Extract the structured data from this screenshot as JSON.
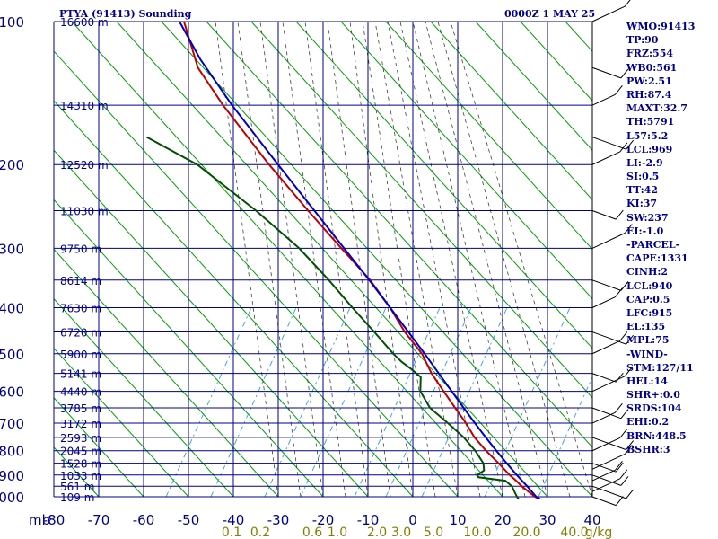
{
  "header": {
    "station_title": "PTYA (91413) Sounding",
    "time_label": "0000Z  1 MAY 25"
  },
  "indices": [
    "WMO:91413",
    "TP:90",
    "FRZ:554",
    "WB0:561",
    "PW:2.51",
    "RH:87.4",
    "MAXT:32.7",
    "TH:5791",
    "L57:5.2",
    "LCL:969",
    "LI:-2.9",
    "SI:0.5",
    "TT:42",
    "KI:37",
    "SW:237",
    "EI:-1.0",
    "-PARCEL-",
    "CAPE:1331",
    "CINH:2",
    "LCL:940",
    "CAP:0.5",
    "LFC:915",
    "EL:135",
    "MPL:75",
    "-WIND-",
    "STM:127/11",
    "HEL:14",
    "SHR+:0.0",
    "SRDS:104",
    "EHI:0.2",
    "BRN:448.5",
    "BSHR:3"
  ],
  "colors": {
    "grid": "#00008b",
    "dry_adiabat": "#00a000",
    "moist_adiabat": "#404040",
    "mixing_ratio": "#3399dd",
    "temperature": "#c00000",
    "dewpoint": "#005000",
    "parcel": "#0000c0",
    "wind_barb": "#000000",
    "mixing_label": "#808000"
  },
  "chart_data": {
    "type": "line",
    "title": "PTYA (91413) Sounding",
    "xlabel": "",
    "ylabel": "mb",
    "xlim": [
      -80,
      40
    ],
    "ylim": [
      1000,
      100
    ],
    "y_scale": "log",
    "grid": true,
    "pressure_ticks": [
      "100",
      "200",
      "300",
      "400",
      "500",
      "600",
      "700",
      "800",
      "900",
      "1000"
    ],
    "pressure_axis_label": "mb",
    "temperature_ticks": [
      "-80",
      "-70",
      "-60",
      "-50",
      "-40",
      "-30",
      "-20",
      "-10",
      "0",
      "10",
      "20",
      "30",
      "40"
    ],
    "height_labels": [
      {
        "p": 100,
        "label": "16600 m"
      },
      {
        "p": 150,
        "label": "14310 m"
      },
      {
        "p": 200,
        "label": "12520 m"
      },
      {
        "p": 250,
        "label": "11030 m"
      },
      {
        "p": 300,
        "label": "9750 m"
      },
      {
        "p": 350,
        "label": "8614 m"
      },
      {
        "p": 400,
        "label": "7630 m"
      },
      {
        "p": 450,
        "label": "6720 m"
      },
      {
        "p": 500,
        "label": "5900 m"
      },
      {
        "p": 550,
        "label": "5141 m"
      },
      {
        "p": 600,
        "label": "4440 m"
      },
      {
        "p": 650,
        "label": "3785 m"
      },
      {
        "p": 700,
        "label": "3172 m"
      },
      {
        "p": 750,
        "label": "2593 m"
      },
      {
        "p": 800,
        "label": "2045 m"
      },
      {
        "p": 850,
        "label": "1528 m"
      },
      {
        "p": 900,
        "label": "1033 m"
      },
      {
        "p": 950,
        "label": "561 m"
      },
      {
        "p": 1000,
        "label": "109 m"
      }
    ],
    "mixing_ratio_labels": [
      "0.1",
      "0.2",
      "0.6",
      "1.0",
      "2.0",
      "3.0",
      "5.0",
      "10.0",
      "20.0",
      "40.0",
      "g/kg"
    ],
    "series": [
      {
        "points": [
          [
            1013,
            28.6
          ],
          [
            1000,
            27.2
          ],
          [
            950,
            23.6
          ],
          [
            925,
            22.0
          ],
          [
            900,
            20.2
          ],
          [
            850,
            17.0
          ],
          [
            800,
            13.4
          ],
          [
            750,
            10.0
          ],
          [
            700,
            7.2
          ],
          [
            650,
            3.8
          ],
          [
            600,
            0.2
          ],
          [
            550,
            -3.6
          ],
          [
            500,
            -7.0
          ],
          [
            450,
            -12.2
          ],
          [
            400,
            -17.0
          ],
          [
            350,
            -23.2
          ],
          [
            300,
            -31.6
          ],
          [
            250,
            -41.4
          ],
          [
            200,
            -53.0
          ],
          [
            150,
            -67.0
          ],
          [
            125,
            -75.0
          ],
          [
            100,
            -81.0
          ]
        ]
      },
      {
        "points": [
          [
            1013,
            23.8
          ],
          [
            1000,
            23.2
          ],
          [
            950,
            21.4
          ],
          [
            925,
            19.6
          ],
          [
            910,
            13.4
          ],
          [
            900,
            13.0
          ],
          [
            880,
            14.2
          ],
          [
            850,
            13.6
          ],
          [
            800,
            11.0
          ],
          [
            750,
            7.6
          ],
          [
            700,
            3.2
          ],
          [
            650,
            -1.8
          ],
          [
            600,
            -5.0
          ],
          [
            560,
            -5.8
          ],
          [
            540,
            -8.2
          ],
          [
            520,
            -11.0
          ],
          [
            500,
            -13.4
          ],
          [
            450,
            -19.0
          ],
          [
            400,
            -25.4
          ],
          [
            350,
            -32.4
          ],
          [
            300,
            -41.0
          ],
          [
            250,
            -53.0
          ],
          [
            200,
            -69.0
          ],
          [
            175,
            -82.0
          ]
        ]
      },
      {
        "points": [
          [
            1013,
            28.6
          ],
          [
            1000,
            27.5
          ],
          [
            950,
            24.8
          ],
          [
            925,
            23.3
          ],
          [
            900,
            21.8
          ],
          [
            850,
            18.8
          ],
          [
            800,
            15.7
          ],
          [
            750,
            12.5
          ],
          [
            700,
            9.2
          ],
          [
            650,
            5.7
          ],
          [
            600,
            2.0
          ],
          [
            550,
            -2.0
          ],
          [
            500,
            -6.4
          ],
          [
            450,
            -11.4
          ],
          [
            400,
            -17.0
          ],
          [
            350,
            -23.4
          ],
          [
            300,
            -31.0
          ],
          [
            250,
            -40.0
          ],
          [
            200,
            -51.0
          ],
          [
            150,
            -65.0
          ],
          [
            120,
            -75.0
          ],
          [
            100,
            -82.0
          ]
        ]
      }
    ],
    "wind_pressures": [
      1000,
      975,
      950,
      925,
      900,
      875,
      850,
      800,
      750,
      700,
      650,
      600,
      550,
      500,
      450,
      400,
      350,
      300,
      250,
      200,
      175,
      150,
      125,
      100
    ]
  }
}
